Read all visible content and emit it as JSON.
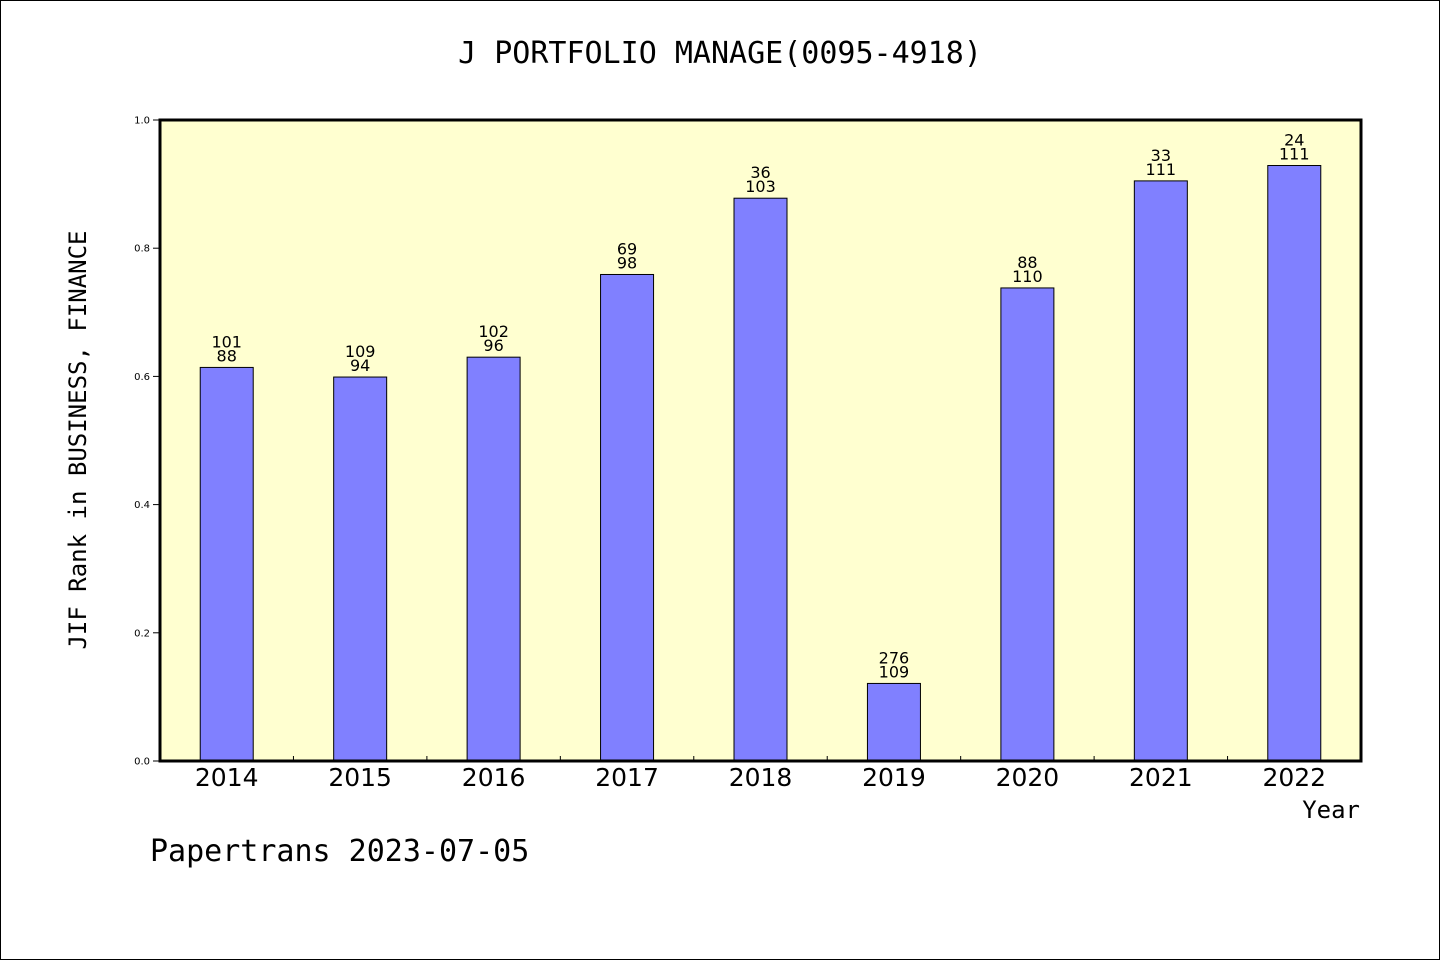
{
  "chart_data": {
    "type": "bar",
    "title": "J PORTFOLIO MANAGE(0095-4918)",
    "xlabel": "Year",
    "ylabel": "JIF Rank in BUSINESS, FINANCE",
    "ylim": [
      0,
      1.0
    ],
    "yticks": [
      "0.0",
      "0.2",
      "0.4",
      "0.6",
      "0.8",
      "1.0"
    ],
    "grid": false,
    "categories": [
      "2014",
      "2015",
      "2016",
      "2017",
      "2018",
      "2019",
      "2020",
      "2021",
      "2022"
    ],
    "values": [
      0.614,
      0.599,
      0.63,
      0.759,
      0.878,
      0.121,
      0.738,
      0.905,
      0.929
    ],
    "labels_top": [
      "101",
      "109",
      "102",
      "69",
      "36",
      "276",
      "88",
      "33",
      "24"
    ],
    "labels_bottom": [
      "88",
      "94",
      "96",
      "98",
      "103",
      "109",
      "110",
      "111",
      "111"
    ],
    "colors": {
      "bar": "#8080ff",
      "plot_bg": "#ffffd0",
      "axis": "#000000"
    }
  },
  "footer": "Papertrans 2023-07-05"
}
